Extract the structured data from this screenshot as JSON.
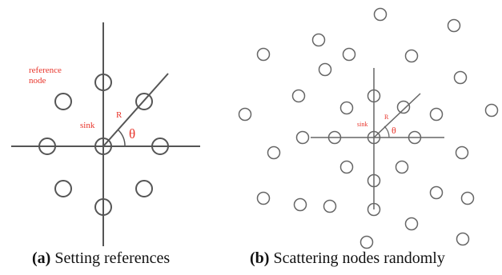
{
  "panel_a": {
    "reference_label_line1": "reference",
    "reference_label_line2": "node",
    "sink_label": "sink",
    "radius_label": "R",
    "angle_label": "θ",
    "caption_tag": "(a)",
    "caption_text": " Setting references"
  },
  "panel_b": {
    "sink_label": "sink",
    "radius_label": "R",
    "angle_label": "θ",
    "caption_tag": "(b)",
    "caption_text": " Scattering nodes randomly"
  },
  "colors": {
    "line": "#555555",
    "label": "#e8342a",
    "text": "#111111"
  }
}
